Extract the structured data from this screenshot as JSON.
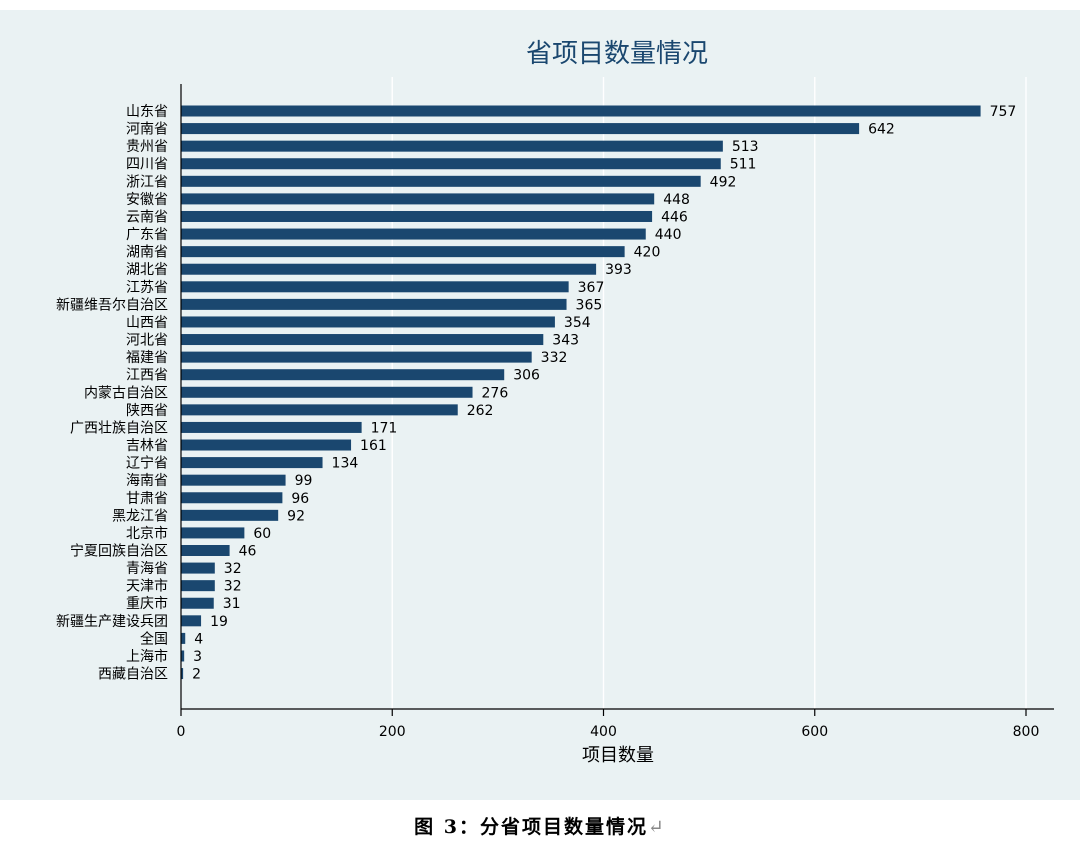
{
  "caption": {
    "text": "图 3：分省项目数量情况",
    "mark": "↵"
  },
  "chart_data": {
    "type": "bar",
    "orientation": "horizontal",
    "title": "省项目数量情况",
    "xlabel": "项目数量",
    "ylabel": "",
    "xlim": [
      0,
      800
    ],
    "xticks": [
      0,
      200,
      400,
      600,
      800
    ],
    "grid": true,
    "bar_color": "#1a476f",
    "background_color": "#eaf2f3",
    "categories": [
      "山东省",
      "河南省",
      "贵州省",
      "四川省",
      "浙江省",
      "安徽省",
      "云南省",
      "广东省",
      "湖南省",
      "湖北省",
      "江苏省",
      "新疆维吾尔自治区",
      "山西省",
      "河北省",
      "福建省",
      "江西省",
      "内蒙古自治区",
      "陕西省",
      "广西壮族自治区",
      "吉林省",
      "辽宁省",
      "海南省",
      "甘肃省",
      "黑龙江省",
      "北京市",
      "宁夏回族自治区",
      "青海省",
      "天津市",
      "重庆市",
      "新疆生产建设兵团",
      "全国",
      "上海市",
      "西藏自治区"
    ],
    "values": [
      757,
      642,
      513,
      511,
      492,
      448,
      446,
      440,
      420,
      393,
      367,
      365,
      354,
      343,
      332,
      306,
      276,
      262,
      171,
      161,
      134,
      99,
      96,
      92,
      60,
      46,
      32,
      32,
      31,
      19,
      4,
      3,
      2
    ]
  }
}
